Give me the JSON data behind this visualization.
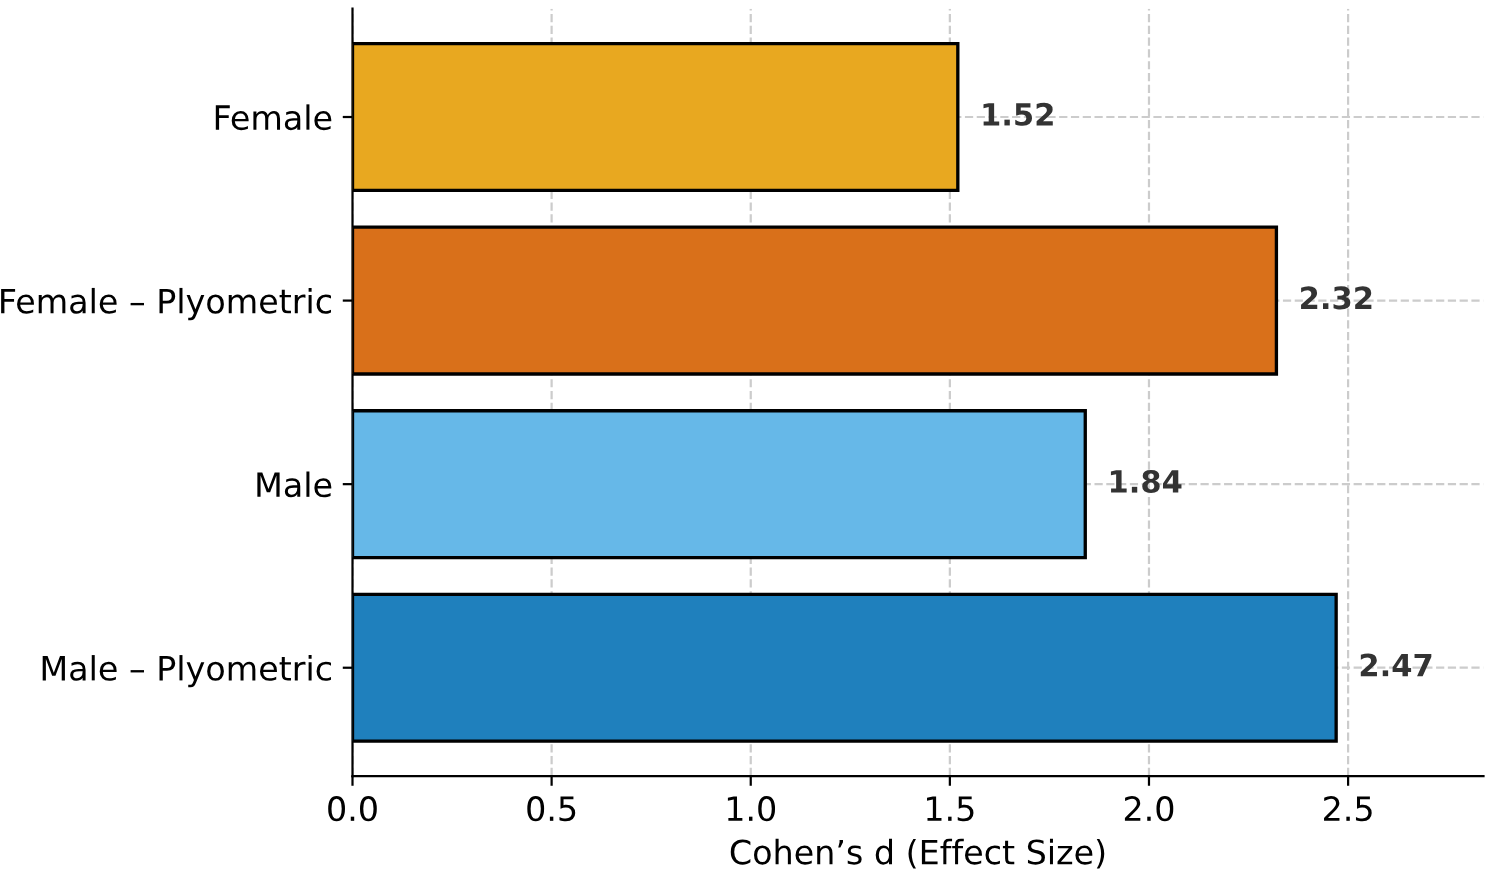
{
  "chart_data": {
    "type": "bar",
    "orientation": "horizontal",
    "xlabel": "Cohen’s d (Effect Size)",
    "categories": [
      "Female",
      "Female – Plyometric",
      "Male",
      "Male – Plyometric"
    ],
    "values": [
      1.52,
      2.32,
      1.84,
      2.47
    ],
    "colors": [
      "#e8a820",
      "#d9701a",
      "#66b8e8",
      "#1f80bd"
    ],
    "xlim": [
      0,
      2.84
    ],
    "xticks": [
      {
        "value": 0,
        "label": "0.0"
      },
      0.5,
      {
        "value": 1,
        "label": "1.0"
      },
      1.5,
      {
        "value": 2,
        "label": "2.0"
      },
      2.5
    ],
    "data_labels": true,
    "grid": true
  }
}
